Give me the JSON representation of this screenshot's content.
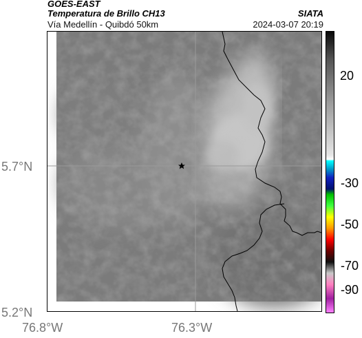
{
  "header": {
    "title": "GOES-EAST",
    "subtitle": "Temperatura de Brillo CH13",
    "organization": "SIATA",
    "place": "Vía Medellín - Quibdó 50km",
    "datetime": "2024-03-07 20:19"
  },
  "map": {
    "lat_labels": [
      "5.7°N",
      "5.2°N"
    ],
    "lon_labels": [
      "76.8°W",
      "76.3°W"
    ],
    "marker": "star-marker"
  },
  "colorbar": {
    "ticks": [
      "20",
      "-30",
      "-50",
      "-70",
      "-90"
    ]
  }
}
